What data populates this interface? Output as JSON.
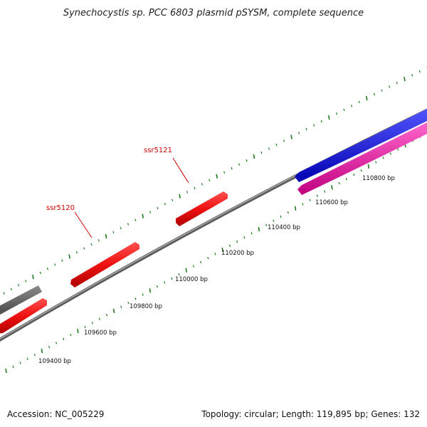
{
  "title": "Synechocystis sp. PCC 6803 plasmid pSYSM, complete sequence",
  "accession": "Accession: NC_005229",
  "summary": "Topology: circular; Length: 119,895 bp; Genes: 132",
  "colors": {
    "backbone": "#7a7a7a",
    "tick": "#1f7a1f",
    "gene_red": "#ee1111",
    "gene_gray": "#666666",
    "gene_blue": "#1414ee",
    "gene_pink": "#ee1199",
    "label": "#d00000"
  },
  "scale_labels": [
    "109400 bp",
    "109600 bp",
    "109800 bp",
    "110000 bp",
    "110200 bp",
    "110400 bp",
    "110600 bp",
    "110800 bp"
  ],
  "gene_labels": [
    {
      "name": "ssr5120"
    },
    {
      "name": "ssr5121"
    }
  ]
}
